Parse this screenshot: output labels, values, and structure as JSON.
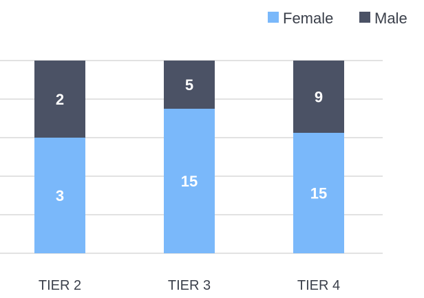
{
  "chart_data": {
    "type": "bar",
    "stacked": true,
    "categories": [
      "TIER 2",
      "TIER 3",
      "TIER 4"
    ],
    "series": [
      {
        "name": "Female",
        "values": [
          3,
          15,
          15
        ],
        "color": "#7ab8fa"
      },
      {
        "name": "Male",
        "values": [
          2,
          5,
          9
        ],
        "color": "#4b5265"
      }
    ],
    "data_labels": {
      "Female": [
        "3",
        "15",
        "15"
      ],
      "Male": [
        "2",
        "5",
        "9"
      ]
    },
    "share_scale": {
      "min": 0,
      "max": 100
    },
    "grid": true,
    "legend_position": "top-right",
    "title": "",
    "xlabel": "",
    "ylabel": ""
  }
}
